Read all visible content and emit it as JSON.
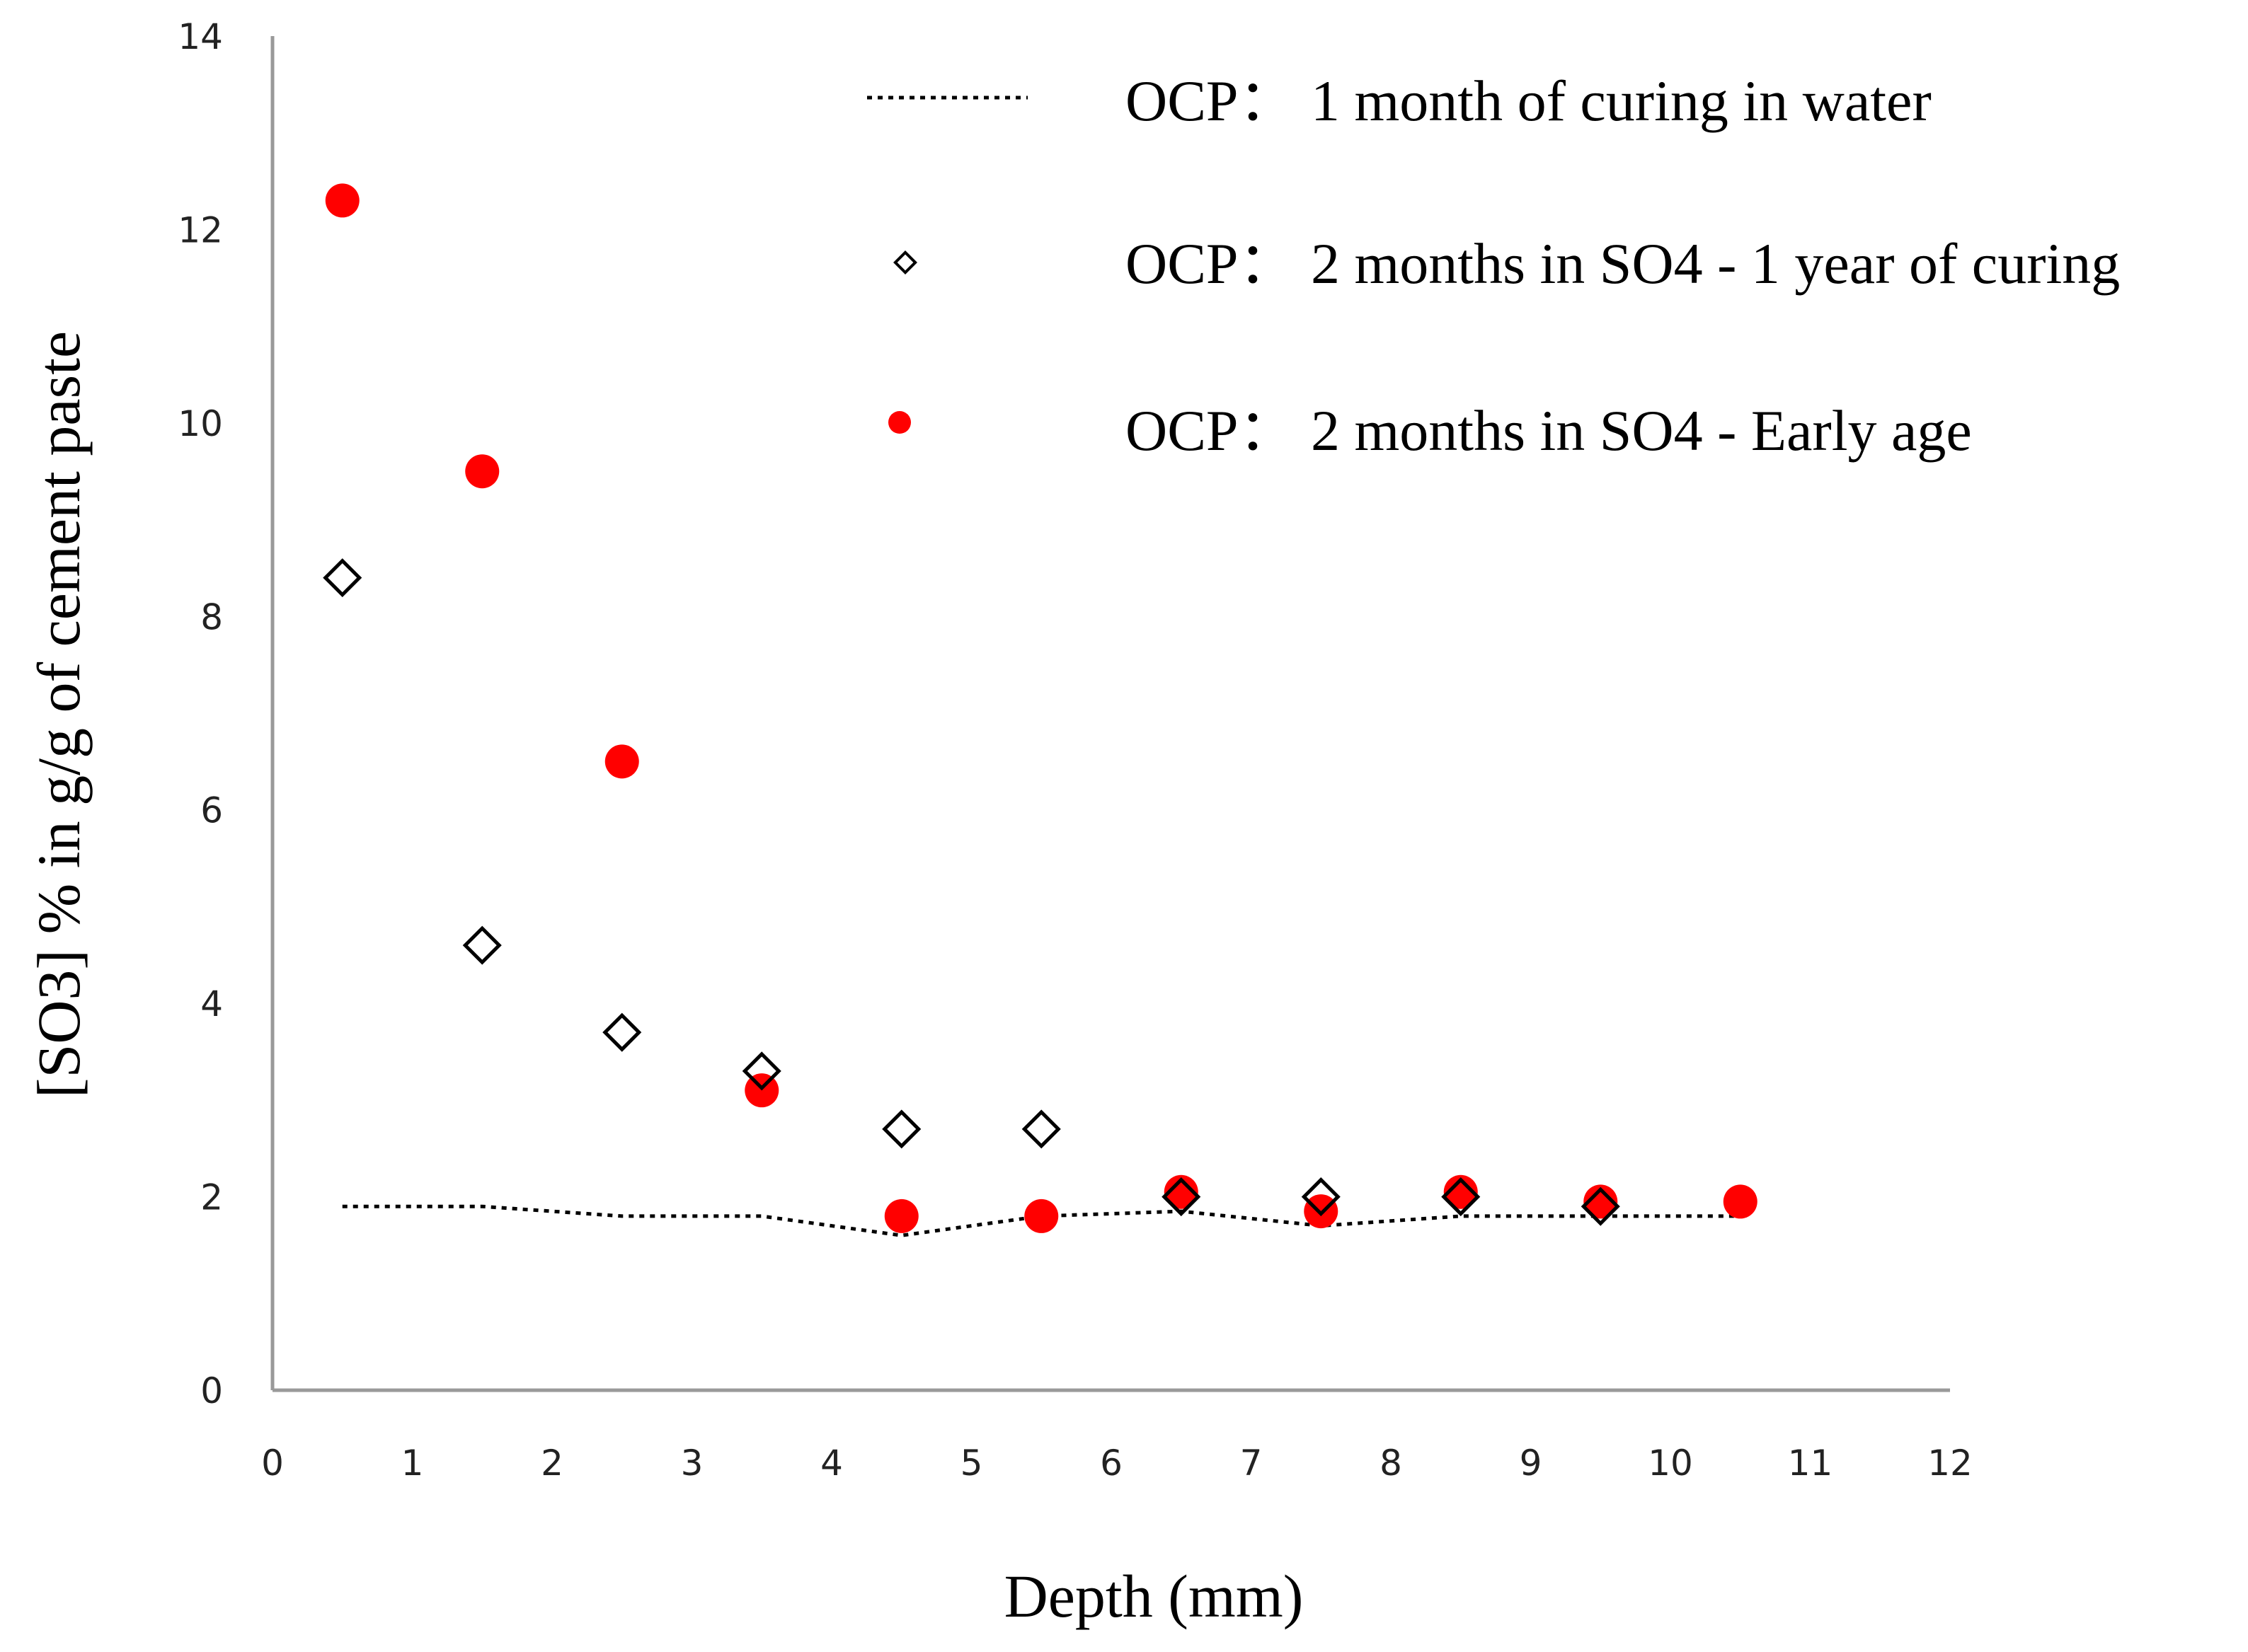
{
  "chart_data": {
    "type": "scatter",
    "title": "",
    "xlabel": "Depth (mm)",
    "ylabel": "[SO3] % in g/g of cement paste",
    "xlim": [
      0,
      12
    ],
    "ylim": [
      0,
      14
    ],
    "x_ticks": [
      "0",
      "1",
      "2",
      "3",
      "4",
      "5",
      "6",
      "7",
      "8",
      "9",
      "10",
      "11",
      "12"
    ],
    "y_ticks": [
      "0",
      "2",
      "4",
      "6",
      "8",
      "10",
      "12",
      "14"
    ],
    "grid": false,
    "legend_position": "top-right",
    "series": [
      {
        "name": "OCP： 1 month of curing in water",
        "style": "dotted-line",
        "color": "#000000",
        "x": [
          0.5,
          1.5,
          2.5,
          3.5,
          4.5,
          5.5,
          6.5,
          7.5,
          8.5,
          9.5,
          10.5
        ],
        "y": [
          1.9,
          1.9,
          1.8,
          1.8,
          1.6,
          1.8,
          1.85,
          1.7,
          1.8,
          1.8,
          1.8
        ]
      },
      {
        "name": "OCP： 2 months in SO4 - 1 year of curing",
        "style": "open-diamond",
        "color": "#000000",
        "x": [
          0.5,
          1.5,
          2.5,
          3.5,
          4.5,
          5.5,
          6.5,
          7.5,
          8.5,
          9.5
        ],
        "y": [
          8.4,
          4.6,
          3.7,
          3.3,
          2.7,
          2.7,
          2.0,
          2.0,
          2.0,
          1.9
        ]
      },
      {
        "name": "OCP： 2 months in SO4 - Early age",
        "style": "filled-circle",
        "color": "#ff0000",
        "x": [
          0.5,
          1.5,
          2.5,
          3.5,
          4.5,
          5.5,
          6.5,
          7.5,
          8.5,
          9.5,
          10.5
        ],
        "y": [
          12.3,
          9.5,
          6.5,
          3.1,
          1.8,
          1.8,
          2.05,
          1.85,
          2.05,
          1.95,
          1.95
        ]
      }
    ]
  }
}
